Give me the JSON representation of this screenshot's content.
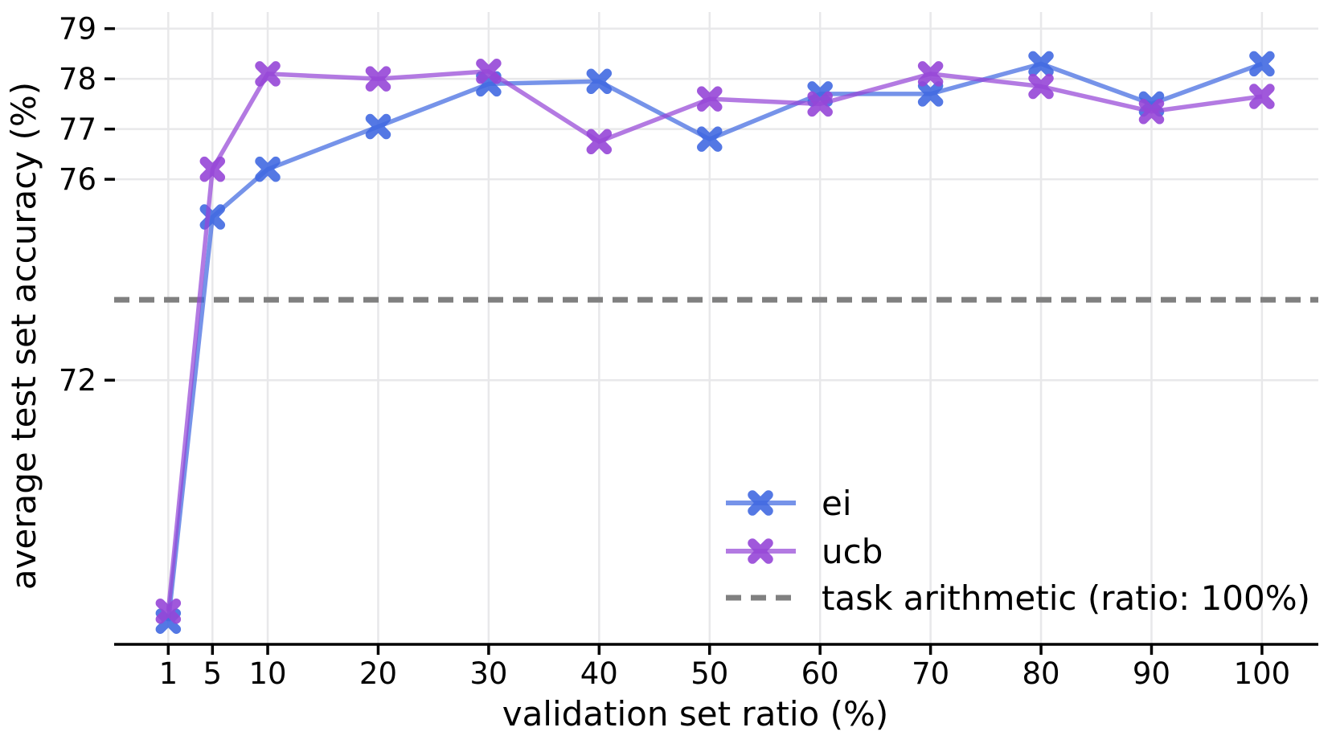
{
  "figure": {
    "background": "#ffffff",
    "grid_color": "#e8e8ea",
    "spine_color": "#000000",
    "text_color": "#000000"
  },
  "chart_data": {
    "type": "line",
    "title": "",
    "xlabel": "validation set ratio (%)",
    "ylabel": "average test set accuracy (%)",
    "x_ticks": [
      1,
      5,
      10,
      20,
      30,
      40,
      50,
      60,
      70,
      80,
      90,
      100
    ],
    "y_ticks": [
      79,
      78,
      77,
      76,
      72
    ],
    "xlim": [
      -3.9,
      105.1
    ],
    "ylim": [
      66.74,
      79.33
    ],
    "grid": true,
    "x": [
      1,
      5,
      10,
      20,
      30,
      40,
      50,
      60,
      70,
      80,
      90,
      100
    ],
    "series": [
      {
        "name": "ei",
        "color": "#4169e1",
        "marker": "X",
        "values": [
          67.2,
          75.25,
          76.2,
          77.05,
          77.9,
          77.95,
          76.8,
          77.7,
          77.7,
          78.3,
          77.5,
          78.3
        ]
      },
      {
        "name": "ucb",
        "color": "#9646d7",
        "marker": "X",
        "values": [
          67.4,
          76.2,
          78.1,
          78.0,
          78.15,
          76.75,
          77.6,
          77.5,
          78.1,
          77.85,
          77.35,
          77.65
        ]
      }
    ],
    "reference_line": {
      "label": "task arithmetic (ratio: 100%)",
      "value": 73.6,
      "color": "#808080",
      "style": "dashed"
    },
    "legend": {
      "position": "lower right",
      "entries": [
        "ei",
        "ucb",
        "task arithmetic (ratio: 100%)"
      ]
    }
  }
}
